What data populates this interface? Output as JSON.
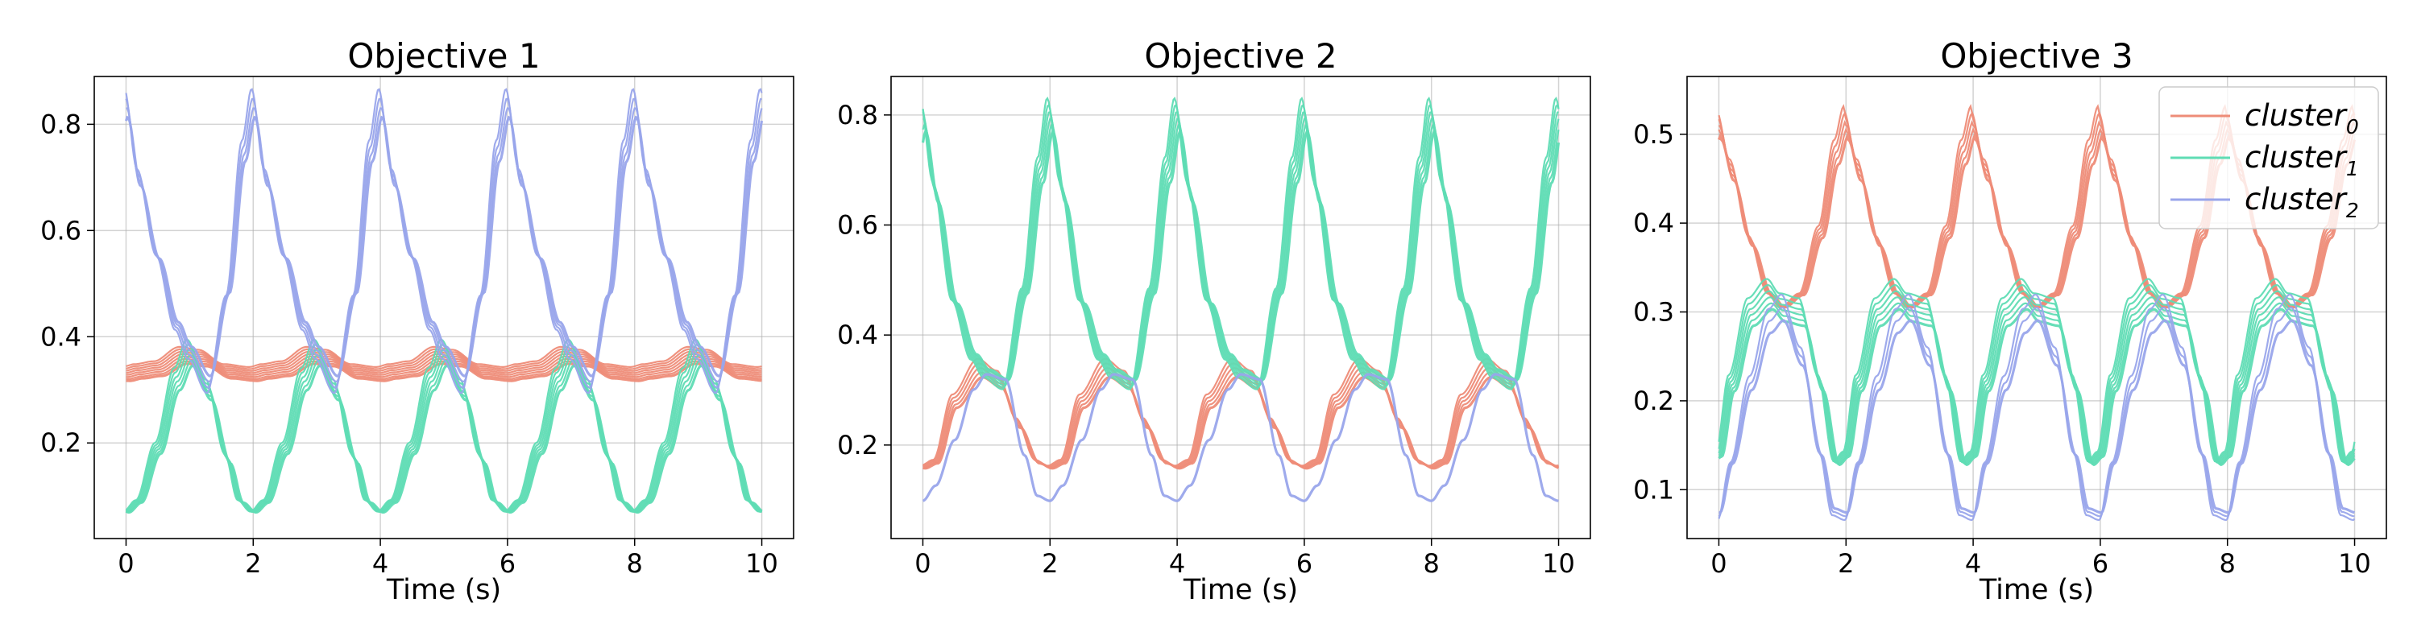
{
  "chart_data": [
    {
      "type": "line",
      "title": "Objective 1",
      "xlabel": "Time (s)",
      "ylabel": "",
      "xlim": [
        -0.5,
        10.5
      ],
      "ylim": [
        0.02,
        0.89
      ],
      "xticks": [
        0,
        2,
        4,
        6,
        8,
        10
      ],
      "yticks": [
        0.2,
        0.4,
        0.6,
        0.8
      ],
      "period": 2.0,
      "series": [
        {
          "name": "",
          "cluster": 0,
          "color": "#ee8c78",
          "count": 8,
          "profile": [
            [
              0,
              0.33
            ],
            [
              0.2,
              0.335
            ],
            [
              0.5,
              0.34
            ],
            [
              0.9,
              0.365
            ],
            [
              1.2,
              0.36
            ],
            [
              1.6,
              0.335
            ],
            [
              2.0,
              0.33
            ]
          ]
        },
        {
          "name": "",
          "cluster": 1,
          "color": "#5fdcb4",
          "count": 6,
          "profile": [
            [
              0,
              0.07
            ],
            [
              0.2,
              0.09
            ],
            [
              0.5,
              0.19
            ],
            [
              0.8,
              0.32
            ],
            [
              1.0,
              0.37
            ],
            [
              1.3,
              0.3
            ],
            [
              1.6,
              0.17
            ],
            [
              1.8,
              0.09
            ],
            [
              2.0,
              0.07
            ]
          ]
        },
        {
          "name": "",
          "cluster": 2,
          "color": "#99a5eb",
          "count": 4,
          "profile": [
            [
              0,
              0.84
            ],
            [
              0.2,
              0.7
            ],
            [
              0.5,
              0.55
            ],
            [
              0.8,
              0.42
            ],
            [
              1.0,
              0.37
            ],
            [
              1.3,
              0.31
            ],
            [
              1.6,
              0.48
            ],
            [
              1.85,
              0.75
            ],
            [
              2.0,
              0.84
            ]
          ]
        }
      ]
    },
    {
      "type": "line",
      "title": "Objective 2",
      "xlabel": "Time (s)",
      "ylabel": "",
      "xlim": [
        -0.5,
        10.5
      ],
      "ylim": [
        0.03,
        0.87
      ],
      "xticks": [
        0,
        2,
        4,
        6,
        8,
        10
      ],
      "yticks": [
        0.2,
        0.4,
        0.6,
        0.8
      ],
      "period": 2.0,
      "series": [
        {
          "name": "",
          "cluster": 0,
          "color": "#ee8c78",
          "count": 5,
          "profile": [
            [
              0,
              0.16
            ],
            [
              0.2,
              0.17
            ],
            [
              0.5,
              0.28
            ],
            [
              0.9,
              0.34
            ],
            [
              1.2,
              0.32
            ],
            [
              1.5,
              0.24
            ],
            [
              1.8,
              0.17
            ],
            [
              2.0,
              0.16
            ]
          ]
        },
        {
          "name": "",
          "cluster": 1,
          "color": "#5fdcb4",
          "count": 6,
          "profile": [
            [
              0,
              0.8
            ],
            [
              0.2,
              0.66
            ],
            [
              0.5,
              0.46
            ],
            [
              0.8,
              0.36
            ],
            [
              1.0,
              0.33
            ],
            [
              1.3,
              0.31
            ],
            [
              1.6,
              0.48
            ],
            [
              1.85,
              0.7
            ],
            [
              2.0,
              0.8
            ]
          ]
        },
        {
          "name": "",
          "cluster": 2,
          "color": "#99a5eb",
          "count": 1,
          "profile": [
            [
              0,
              0.09
            ],
            [
              0.2,
              0.12
            ],
            [
              0.5,
              0.21
            ],
            [
              0.8,
              0.31
            ],
            [
              1.0,
              0.34
            ],
            [
              1.3,
              0.33
            ],
            [
              1.6,
              0.18
            ],
            [
              1.8,
              0.1
            ],
            [
              2.0,
              0.09
            ]
          ]
        }
      ]
    },
    {
      "type": "line",
      "title": "Objective 3",
      "xlabel": "Time (s)",
      "ylabel": "",
      "xlim": [
        -0.5,
        10.5
      ],
      "ylim": [
        0.045,
        0.565
      ],
      "xticks": [
        0,
        2,
        4,
        6,
        8,
        10
      ],
      "yticks": [
        0.1,
        0.2,
        0.3,
        0.4,
        0.5
      ],
      "period": 2.0,
      "legend": "upper right",
      "series": [
        {
          "name": "cluster",
          "subscript": "0",
          "cluster": 0,
          "color": "#ee8c78",
          "count": 5,
          "profile": [
            [
              0,
              0.51
            ],
            [
              0.2,
              0.46
            ],
            [
              0.5,
              0.38
            ],
            [
              0.8,
              0.32
            ],
            [
              1.0,
              0.305
            ],
            [
              1.3,
              0.32
            ],
            [
              1.6,
              0.39
            ],
            [
              1.85,
              0.48
            ],
            [
              2.0,
              0.515
            ]
          ]
        },
        {
          "name": "cluster",
          "subscript": "1",
          "cluster": 1,
          "color": "#5fdcb4",
          "count": 6,
          "profile": [
            [
              0,
              0.14
            ],
            [
              0.2,
              0.22
            ],
            [
              0.5,
              0.3
            ],
            [
              0.8,
              0.32
            ],
            [
              1.0,
              0.305
            ],
            [
              1.3,
              0.3
            ],
            [
              1.6,
              0.22
            ],
            [
              1.85,
              0.13
            ],
            [
              2.0,
              0.14
            ]
          ]
        },
        {
          "name": "cluster",
          "subscript": "2",
          "cluster": 2,
          "color": "#99a5eb",
          "count": 3,
          "profile": [
            [
              0,
              0.07
            ],
            [
              0.2,
              0.13
            ],
            [
              0.5,
              0.22
            ],
            [
              0.8,
              0.29
            ],
            [
              1.0,
              0.305
            ],
            [
              1.3,
              0.25
            ],
            [
              1.6,
              0.14
            ],
            [
              1.8,
              0.075
            ],
            [
              2.0,
              0.07
            ]
          ]
        }
      ]
    }
  ]
}
